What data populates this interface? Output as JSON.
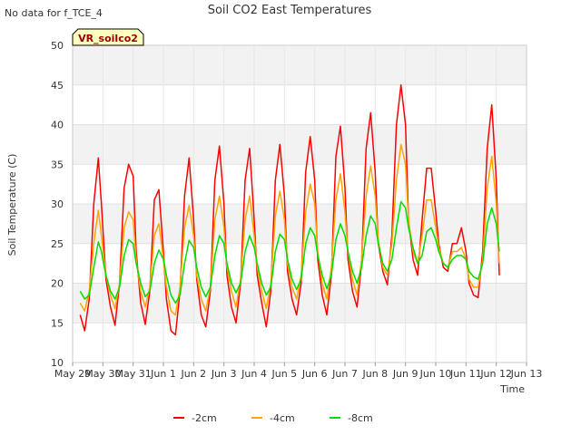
{
  "chart_data": {
    "type": "line",
    "title": "Soil CO2 East Temperatures",
    "corner_note": "No data for f_TCE_4",
    "site_badge": "VR_soilco2",
    "xlabel": "Time",
    "ylabel": "Soil Temperature (C)",
    "ylim": [
      10,
      50
    ],
    "y_ticks": [
      10,
      15,
      20,
      25,
      30,
      35,
      40,
      45,
      50
    ],
    "x_ticks": [
      "May 29",
      "May 30",
      "May 31",
      "Jun 1",
      "Jun 2",
      "Jun 3",
      "Jun 4",
      "Jun 5",
      "Jun 6",
      "Jun 7",
      "Jun 8",
      "Jun 9",
      "Jun 10",
      "Jun 11",
      "Jun 12",
      "Jun 13"
    ],
    "x_tick_days": [
      0,
      1,
      2,
      3,
      4,
      5,
      6,
      7,
      8,
      9,
      10,
      11,
      12,
      13,
      14,
      15
    ],
    "xlim_days": [
      0,
      15
    ],
    "grid": true,
    "legend_position": "bottom",
    "series": [
      {
        "name": "-2cm",
        "color": "#ff0000",
        "x": [
          0.25,
          0.4,
          0.55,
          0.7,
          0.85,
          0.95,
          1.1,
          1.25,
          1.4,
          1.55,
          1.7,
          1.85,
          2.0,
          2.1,
          2.25,
          2.4,
          2.55,
          2.7,
          2.85,
          3.0,
          3.1,
          3.25,
          3.4,
          3.55,
          3.7,
          3.85,
          4.0,
          4.1,
          4.25,
          4.4,
          4.55,
          4.7,
          4.85,
          5.0,
          5.1,
          5.25,
          5.4,
          5.55,
          5.7,
          5.85,
          6.0,
          6.1,
          6.25,
          6.4,
          6.55,
          6.7,
          6.85,
          7.0,
          7.1,
          7.25,
          7.4,
          7.55,
          7.7,
          7.85,
          8.0,
          8.1,
          8.25,
          8.4,
          8.55,
          8.7,
          8.85,
          9.0,
          9.1,
          9.25,
          9.4,
          9.55,
          9.7,
          9.85,
          10.0,
          10.1,
          10.25,
          10.4,
          10.55,
          10.7,
          10.85,
          11.0,
          11.1,
          11.25,
          11.4,
          11.55,
          11.7,
          11.85,
          12.0,
          12.1,
          12.25,
          12.4,
          12.55,
          12.7,
          12.85,
          13.0,
          13.1,
          13.25,
          13.4,
          13.55,
          13.7,
          13.85,
          14.0,
          14.1
        ],
        "y": [
          16.0,
          14.0,
          18.0,
          30.0,
          35.8,
          30.0,
          20.5,
          17.0,
          14.7,
          20.0,
          32.0,
          35.0,
          33.5,
          24.0,
          17.5,
          14.8,
          19.0,
          30.5,
          31.8,
          24.0,
          18.0,
          14.0,
          13.5,
          19.0,
          31.0,
          35.8,
          28.0,
          20.5,
          16.0,
          14.5,
          19.0,
          33.0,
          37.3,
          30.0,
          21.0,
          17.0,
          15.0,
          20.0,
          33.0,
          37.0,
          28.0,
          21.0,
          17.5,
          14.5,
          19.0,
          33.0,
          37.5,
          31.0,
          21.5,
          18.0,
          16.0,
          20.0,
          34.0,
          38.5,
          33.0,
          23.0,
          18.5,
          16.0,
          21.0,
          36.0,
          39.8,
          32.0,
          23.0,
          19.0,
          17.0,
          22.5,
          37.0,
          41.5,
          34.0,
          25.0,
          21.5,
          19.8,
          26.0,
          40.0,
          45.0,
          40.0,
          28.0,
          23.0,
          21.0,
          28.0,
          34.5,
          34.5,
          29.0,
          25.0,
          22.0,
          21.5,
          25.0,
          25.0,
          27.0,
          24.0,
          20.0,
          18.5,
          18.2,
          24.0,
          37.0,
          42.5,
          33.0,
          21.0
        ]
      },
      {
        "name": "-4cm",
        "color": "#ffa500",
        "x": [
          0.25,
          0.4,
          0.55,
          0.7,
          0.85,
          0.95,
          1.1,
          1.25,
          1.4,
          1.55,
          1.7,
          1.85,
          2.0,
          2.1,
          2.25,
          2.4,
          2.55,
          2.7,
          2.85,
          3.0,
          3.1,
          3.25,
          3.4,
          3.55,
          3.7,
          3.85,
          4.0,
          4.1,
          4.25,
          4.4,
          4.55,
          4.7,
          4.85,
          5.0,
          5.1,
          5.25,
          5.4,
          5.55,
          5.7,
          5.85,
          6.0,
          6.1,
          6.25,
          6.4,
          6.55,
          6.7,
          6.85,
          7.0,
          7.1,
          7.25,
          7.4,
          7.55,
          7.7,
          7.85,
          8.0,
          8.1,
          8.25,
          8.4,
          8.55,
          8.7,
          8.85,
          9.0,
          9.1,
          9.25,
          9.4,
          9.55,
          9.7,
          9.85,
          10.0,
          10.1,
          10.25,
          10.4,
          10.55,
          10.7,
          10.85,
          11.0,
          11.1,
          11.25,
          11.4,
          11.55,
          11.7,
          11.85,
          12.0,
          12.1,
          12.25,
          12.4,
          12.55,
          12.7,
          12.85,
          13.0,
          13.1,
          13.25,
          13.4,
          13.55,
          13.7,
          13.85,
          14.0,
          14.1
        ],
        "y": [
          17.5,
          16.5,
          19.0,
          25.0,
          29.2,
          26.0,
          21.0,
          18.5,
          16.8,
          20.0,
          27.0,
          29.0,
          28.0,
          23.0,
          19.0,
          17.0,
          19.5,
          26.0,
          27.5,
          23.0,
          19.5,
          16.5,
          16.0,
          19.5,
          27.0,
          29.8,
          26.0,
          21.0,
          18.0,
          16.5,
          19.5,
          28.0,
          31.0,
          27.0,
          22.0,
          19.0,
          17.0,
          20.5,
          28.0,
          31.0,
          26.0,
          22.0,
          19.0,
          16.8,
          20.0,
          28.5,
          31.6,
          28.0,
          22.5,
          19.5,
          18.0,
          21.0,
          29.0,
          32.5,
          30.0,
          24.0,
          20.0,
          18.0,
          22.0,
          30.5,
          33.8,
          29.0,
          24.0,
          20.5,
          18.5,
          23.0,
          31.0,
          34.8,
          31.0,
          25.5,
          22.0,
          21.0,
          25.0,
          33.0,
          37.5,
          35.0,
          28.0,
          24.0,
          22.5,
          26.0,
          30.5,
          30.5,
          27.0,
          24.5,
          22.5,
          22.0,
          24.0,
          24.0,
          24.5,
          23.0,
          20.5,
          19.5,
          19.5,
          23.0,
          32.0,
          36.0,
          30.0,
          22.5
        ]
      },
      {
        "name": "-8cm",
        "color": "#00dd00",
        "x": [
          0.25,
          0.4,
          0.55,
          0.7,
          0.85,
          0.95,
          1.1,
          1.25,
          1.4,
          1.55,
          1.7,
          1.85,
          2.0,
          2.1,
          2.25,
          2.4,
          2.55,
          2.7,
          2.85,
          3.0,
          3.1,
          3.25,
          3.4,
          3.55,
          3.7,
          3.85,
          4.0,
          4.1,
          4.25,
          4.4,
          4.55,
          4.7,
          4.85,
          5.0,
          5.1,
          5.25,
          5.4,
          5.55,
          5.7,
          5.85,
          6.0,
          6.1,
          6.25,
          6.4,
          6.55,
          6.7,
          6.85,
          7.0,
          7.1,
          7.25,
          7.4,
          7.55,
          7.7,
          7.85,
          8.0,
          8.1,
          8.25,
          8.4,
          8.55,
          8.7,
          8.85,
          9.0,
          9.1,
          9.25,
          9.4,
          9.55,
          9.7,
          9.85,
          10.0,
          10.1,
          10.25,
          10.4,
          10.55,
          10.7,
          10.85,
          11.0,
          11.1,
          11.25,
          11.4,
          11.55,
          11.7,
          11.85,
          12.0,
          12.1,
          12.25,
          12.4,
          12.55,
          12.7,
          12.85,
          13.0,
          13.1,
          13.25,
          13.4,
          13.55,
          13.7,
          13.85,
          14.0,
          14.1
        ],
        "y": [
          19.0,
          18.0,
          18.5,
          22.0,
          25.2,
          24.0,
          21.0,
          19.0,
          18.0,
          19.5,
          23.5,
          25.5,
          25.0,
          22.5,
          20.0,
          18.3,
          19.0,
          22.5,
          24.2,
          23.0,
          21.0,
          18.5,
          17.5,
          18.5,
          22.5,
          25.4,
          24.5,
          22.0,
          19.5,
          18.3,
          19.5,
          23.5,
          26.0,
          25.0,
          22.5,
          20.0,
          18.8,
          20.0,
          24.0,
          26.0,
          24.5,
          22.5,
          20.0,
          18.5,
          19.5,
          24.0,
          26.2,
          25.5,
          23.0,
          20.5,
          19.2,
          20.5,
          25.0,
          27.0,
          26.0,
          23.5,
          21.0,
          19.3,
          21.0,
          25.5,
          27.5,
          26.0,
          24.0,
          21.5,
          20.0,
          22.0,
          26.0,
          28.5,
          27.5,
          25.0,
          22.5,
          21.5,
          23.0,
          27.0,
          30.3,
          29.5,
          27.0,
          24.5,
          22.5,
          23.5,
          26.5,
          27.0,
          25.5,
          24.0,
          22.5,
          22.0,
          23.0,
          23.5,
          23.5,
          23.0,
          21.5,
          20.8,
          20.5,
          22.5,
          27.5,
          29.5,
          27.5,
          24.0
        ]
      }
    ]
  }
}
